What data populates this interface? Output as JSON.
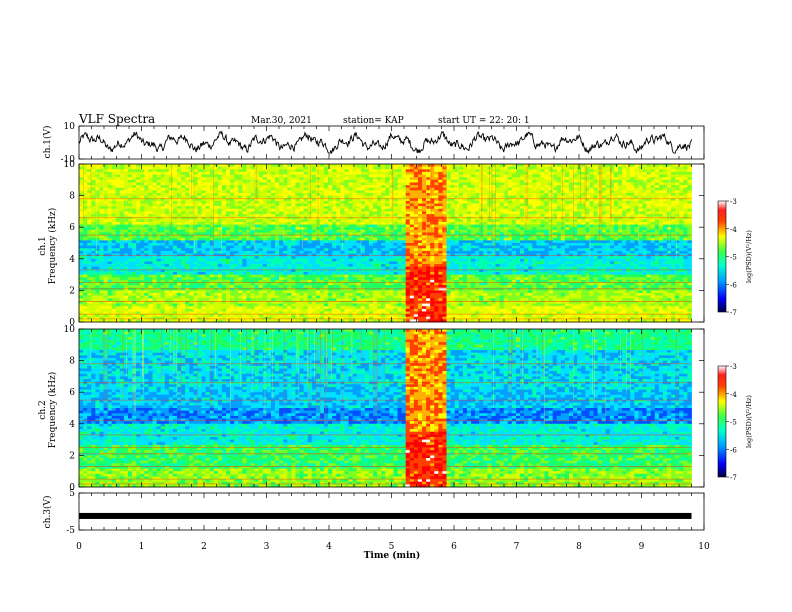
{
  "header": {
    "title": "VLF Spectra",
    "date": "Mar.30, 2021",
    "station": "station= KAP",
    "start": "start UT =   22: 20: 1"
  },
  "chart_data": [
    {
      "type": "line",
      "panel": "ch1-waveform",
      "ylabel": "ch.1(V)",
      "ylim": [
        -10,
        10
      ],
      "yticks": [
        10,
        -10
      ],
      "xlim": [
        0,
        10
      ],
      "series": [
        {
          "color": "#000000",
          "x_range": [
            0,
            9.8
          ]
        }
      ]
    },
    {
      "type": "heatmap",
      "panel": "ch1-spectrogram",
      "ylabel": "ch.1\nFrequency (kHz)",
      "ylim": [
        0,
        10
      ],
      "yticks": [
        0,
        2,
        4,
        6,
        8,
        10
      ],
      "xlim": [
        0,
        10
      ],
      "data_x_range": [
        0,
        9.8
      ],
      "burst_x_range": [
        5.2,
        5.85
      ],
      "colorbar": {
        "label": "log(PSD)(V²/Hz)",
        "range": [
          -7,
          -3
        ],
        "ticks": [
          -3,
          -4,
          -5,
          -6,
          -7
        ]
      }
    },
    {
      "type": "heatmap",
      "panel": "ch2-spectrogram",
      "ylabel": "ch.2\nFrequency (kHz)",
      "ylim": [
        0,
        10
      ],
      "yticks": [
        0,
        2,
        4,
        6,
        8,
        10
      ],
      "xlim": [
        0,
        10
      ],
      "data_x_range": [
        0,
        9.8
      ],
      "burst_x_range": [
        5.2,
        5.85
      ],
      "colorbar": {
        "label": "log(PSD)(V²/Hz)",
        "range": [
          -7,
          -3
        ],
        "ticks": [
          -3,
          -4,
          -5,
          -6,
          -7
        ]
      }
    },
    {
      "type": "line",
      "panel": "ch3-waveform",
      "ylabel": "ch.3(V)",
      "ylim": [
        -5,
        5
      ],
      "yticks": [
        5,
        -5
      ],
      "xlim": [
        0,
        10
      ],
      "xlabel": "Time  (min)",
      "xticks": [
        0,
        1,
        2,
        3,
        4,
        5,
        6,
        7,
        8,
        9,
        10
      ],
      "series": [
        {
          "color": "#000000",
          "x_range": [
            0,
            9.8
          ],
          "level": -1.2
        }
      ]
    }
  ]
}
